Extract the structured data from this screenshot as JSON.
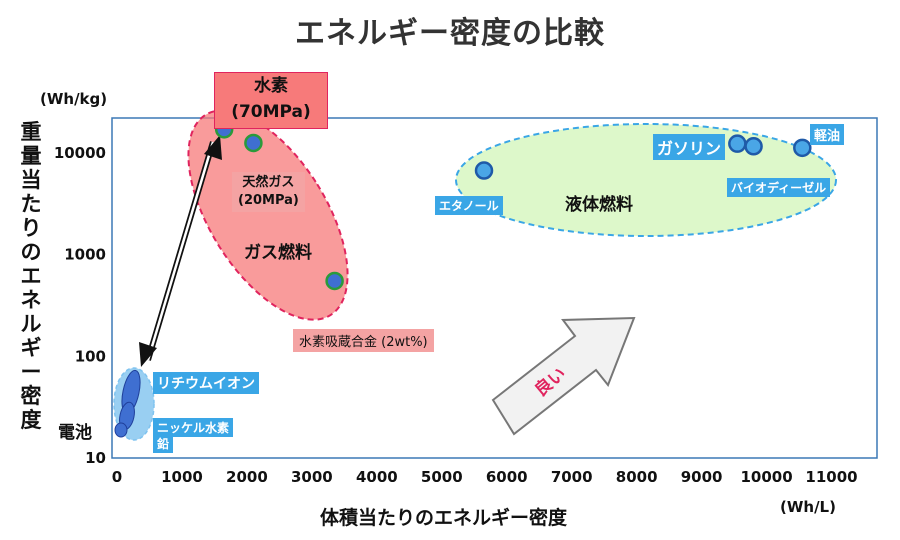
{
  "title": "エネルギー密度の比較",
  "chart_data": {
    "type": "scatter",
    "ylabel": "重量当たりのエネルギー密度",
    "yunit": "(Wh/kg)",
    "xlabel": "体積当たりのエネルギー密度",
    "xunit": "(Wh/L)",
    "xlim": [
      0,
      11700
    ],
    "ylim": [
      10,
      22000
    ],
    "yscale": "log",
    "xticks": [
      0,
      1000,
      2000,
      3000,
      4000,
      5000,
      6000,
      7000,
      8000,
      9000,
      10000,
      11000
    ],
    "yticks": [
      10,
      100,
      1000,
      10000
    ],
    "points": [
      {
        "label": "水素\n(70MPa)",
        "x": 1650,
        "y": 17000,
        "color": "#3f6fd1",
        "ring": "#2b9a3a"
      },
      {
        "label": "天然ガス\n(20MPa)",
        "x": 2100,
        "y": 12500,
        "color": "#3f6fd1",
        "ring": "#2b9a3a"
      },
      {
        "label": "水素吸蔵合金 (2wt%)",
        "x": 3350,
        "y": 550,
        "color": "#3f6fd1",
        "ring": "#2b9a3a"
      },
      {
        "label": "エタノール",
        "x": 5650,
        "y": 6700,
        "color": "#4aa6e6",
        "ring": "#1f5aa8"
      },
      {
        "label": "ガソリン",
        "x": 9550,
        "y": 12300,
        "color": "#4aa6e6",
        "ring": "#1f5aa8"
      },
      {
        "label": "バイオディーゼル",
        "x": 9800,
        "y": 11600,
        "color": "#4aa6e6",
        "ring": "#1f5aa8"
      },
      {
        "label": "軽油",
        "x": 10550,
        "y": 11200,
        "color": "#4aa6e6",
        "ring": "#1f5aa8"
      }
    ],
    "groups": [
      {
        "name": "ガス燃料",
        "fill": "#f77a7a",
        "stroke": "#e0245e"
      },
      {
        "name": "液体燃料",
        "fill": "#d9f7c4",
        "stroke": "#3aa6e6"
      },
      {
        "name": "電池",
        "fill": "#7fc3ef",
        "stroke": "#7fc3ef"
      }
    ],
    "annotations": {
      "hydrogen": "水素",
      "hydrogen_p": "(70MPa)",
      "natgas": "天然ガス",
      "natgas_p": "(20MPa)",
      "alloy": "水素吸蔵合金 (2wt%)",
      "ethanol": "エタノール",
      "gasoline": "ガソリン",
      "biodiesel": "バイオディーゼル",
      "diesel": "軽油",
      "lithium": "リチウムイオン",
      "nickel": "ニッケル水素",
      "lead": "鉛",
      "battery": "電池",
      "good": "良い"
    }
  }
}
